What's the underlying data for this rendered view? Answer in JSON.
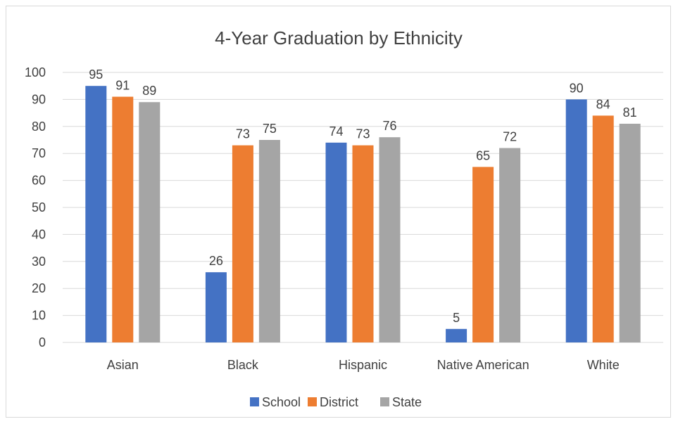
{
  "chart_data": {
    "type": "bar",
    "title": "4-Year Graduation by Ethnicity",
    "categories": [
      "Asian",
      "Black",
      "Hispanic",
      "Native American",
      "White"
    ],
    "series": [
      {
        "name": "School",
        "values": [
          95,
          26,
          74,
          5,
          90
        ],
        "color": "#4472C4"
      },
      {
        "name": "District",
        "values": [
          91,
          73,
          73,
          65,
          84
        ],
        "color": "#ED7D31"
      },
      {
        "name": "State",
        "values": [
          89,
          75,
          76,
          72,
          81
        ],
        "color": "#A5A5A5"
      }
    ],
    "ylim": [
      0,
      100
    ],
    "yticks": [
      0,
      10,
      20,
      30,
      40,
      50,
      60,
      70,
      80,
      90,
      100
    ],
    "grid": true,
    "legend_position": "bottom",
    "data_labels": true
  }
}
